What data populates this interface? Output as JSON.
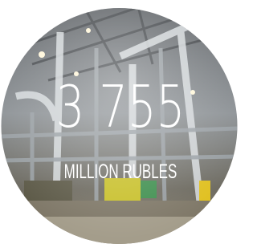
{
  "stat": {
    "value": "3 755",
    "unit": "MILLION RUBLES"
  }
}
